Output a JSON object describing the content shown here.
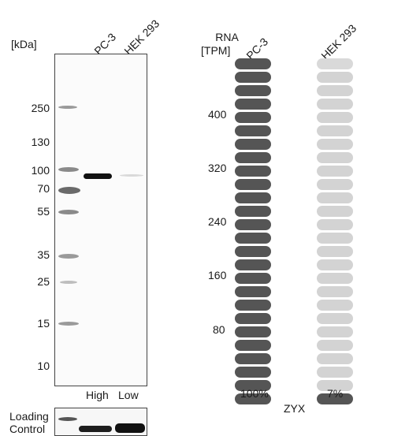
{
  "blot": {
    "kda_header": "[kDa]",
    "lanes": [
      "PC-3",
      "HEK 293"
    ],
    "markers": [
      "250",
      "130",
      "100",
      "70",
      "55",
      "35",
      "25",
      "15",
      "10"
    ],
    "expression_labels": [
      "High",
      "Low"
    ],
    "loading_control": [
      "Loading",
      "Control"
    ]
  },
  "rna": {
    "header": [
      "RNA",
      "[TPM]"
    ],
    "ticks": [
      "400",
      "320",
      "240",
      "160",
      "80"
    ],
    "columns": [
      {
        "name": "PC-3",
        "percent": "100%",
        "filled_fraction": 1.0,
        "filled_segments": 26
      },
      {
        "name": "HEK 293",
        "percent": "7%",
        "filled_fraction": 0.07,
        "filled_segments": 1
      }
    ],
    "segments_per_column": 26,
    "gene": "ZYX",
    "colors": {
      "filled": "#555555",
      "empty": "#d3d3d3",
      "top_empty": "#d9d9d9"
    }
  }
}
